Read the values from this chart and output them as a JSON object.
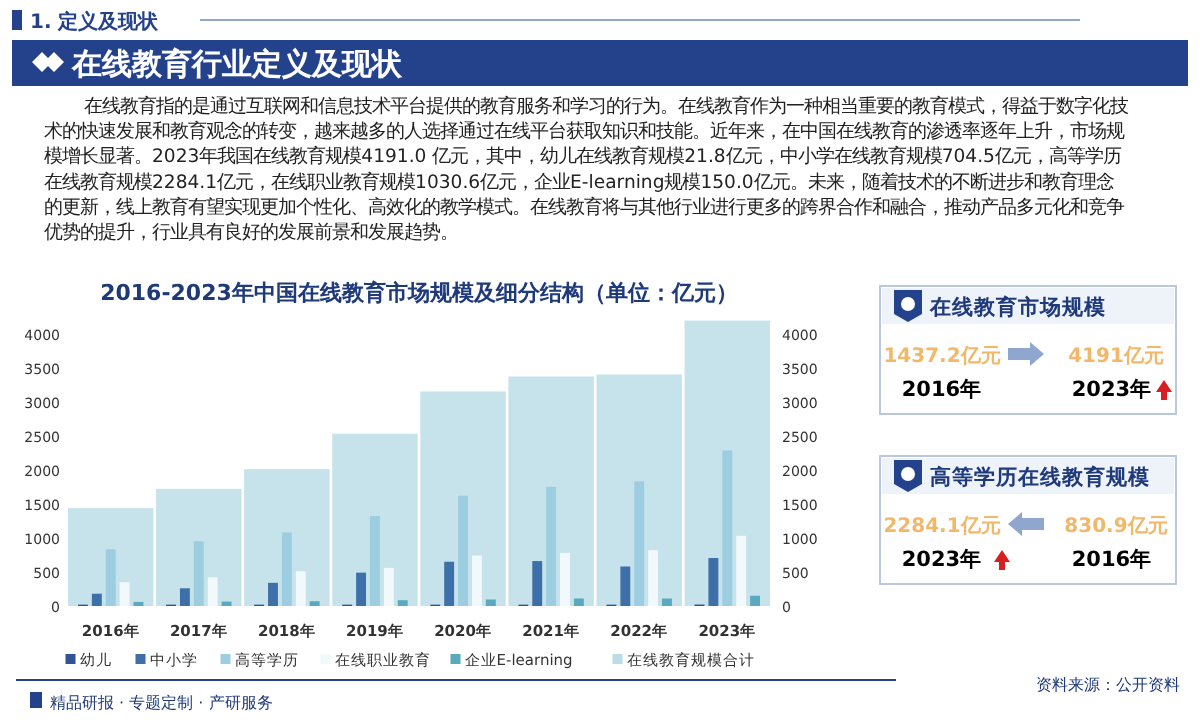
{
  "chart_data": {
    "type": "bar",
    "title": "2016-2023年中国在线教育市场规模及细分结构（单位：亿元）",
    "categories": [
      "2016年",
      "2017年",
      "2018年",
      "2019年",
      "2020年",
      "2021年",
      "2022年",
      "2023年"
    ],
    "series": [
      {
        "name": "幼儿",
        "color": "#2f5597",
        "values": [
          20,
          20,
          20,
          20,
          20,
          20,
          20,
          21.8
        ]
      },
      {
        "name": "中小学",
        "color": "#3d6fa8",
        "values": [
          180,
          260,
          340,
          490,
          650,
          660,
          580,
          704.5
        ]
      },
      {
        "name": "高等学历",
        "color": "#9ccde0",
        "values": [
          830.9,
          950,
          1080,
          1320,
          1620,
          1750,
          1830,
          2284.1
        ]
      },
      {
        "name": "在线职业教育",
        "color": "#f2f9fc",
        "values": [
          350,
          420,
          510,
          560,
          740,
          780,
          820,
          1030.6
        ]
      },
      {
        "name": "企业E-learning",
        "color": "#5aa9bf",
        "values": [
          60,
          65,
          70,
          85,
          95,
          110,
          110,
          150
        ]
      },
      {
        "name": "在线教育规模合计",
        "color": "#bcdde8",
        "axis": "y2",
        "values": [
          1437.2,
          1720,
          2010,
          2530,
          3150,
          3370,
          3400,
          4191
        ]
      }
    ],
    "ylim": [
      0,
      4200
    ],
    "yticks": [
      0,
      500,
      1000,
      1500,
      2000,
      2500,
      3000,
      3500,
      4000
    ],
    "y2lim": [
      0,
      4200
    ],
    "y2ticks": [
      0,
      500,
      1000,
      1500,
      2000,
      2500,
      3000,
      3500,
      4000
    ],
    "legend": "bottom",
    "annotations": [
      "1. 定义及现状",
      "在线教育行业定义及现状",
      "在线教育指的是通过互联网和信息技术平台提供的教育服务和学习的行为。在线教育作为一种相当重要的教育模式，得益于数字化技术的快速发展和教育观念的转变，越来越多的人选择通过在线平台获取知识和技能。近年来，在中国在线教育的渗透率逐年上升，市场规模增长显著。2023年我国在线教育规模4191.0 亿元，其中，幼儿在线教育规模21.8亿元，中小学在线教育规模704.5亿元，高等学历在线教育规模2284.1亿元，在线职业教育规模1030.6亿元，企业E-learning规模150.0亿元。未来，随着技术的不断进步和教育理念的更新，线上教育有望实现更加个性化、高效化的教学模式。在线教育将与其他行业进行更多的跨界合作和融合，推动产品多元化和竞争优势的提升，行业具有良好的发展前景和发展趋势。",
      "在线教育市场规模",
      "1437.2亿元",
      "2016年",
      "4191亿元",
      "2023年",
      "高等学历在线教育规模",
      "2284.1亿元",
      "2023年",
      "830.9亿元",
      "2016年",
      "资料来源：公开资料",
      "精品研报 · 专题定制 · 产研服务"
    ]
  }
}
